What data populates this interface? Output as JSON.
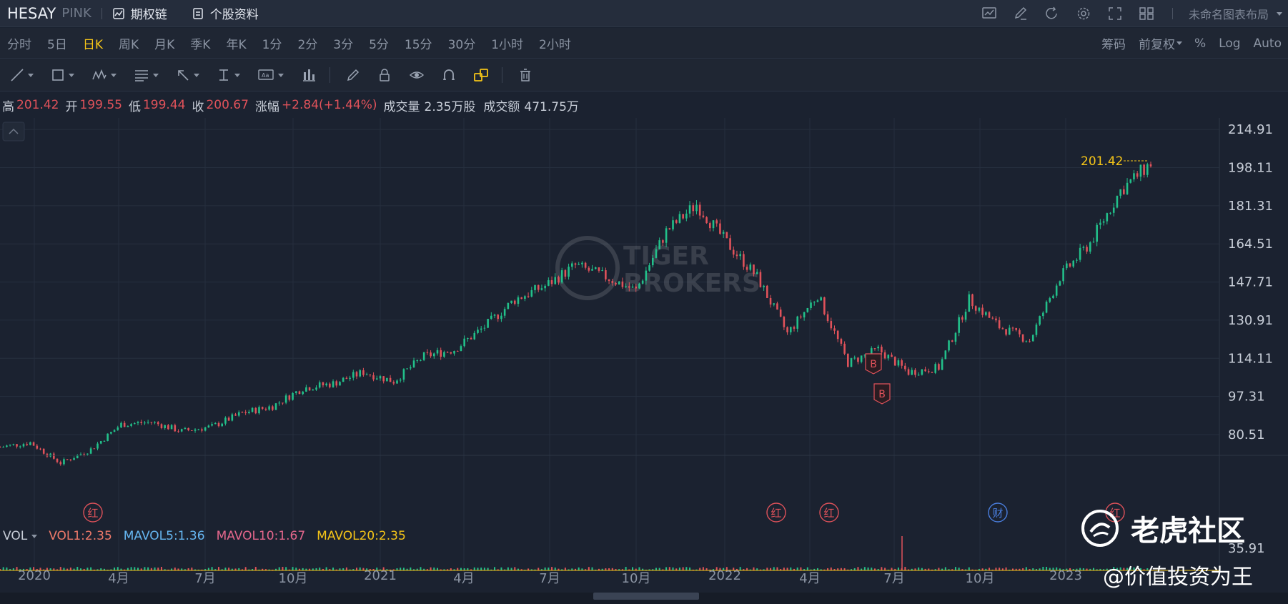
{
  "header": {
    "ticker": "HESAY",
    "exchange": "PINK",
    "option_chain": "期权链",
    "stock_profile": "个股资料",
    "layout_name": "未命名图表布局"
  },
  "periods": [
    "分时",
    "5日",
    "日K",
    "周K",
    "月K",
    "季K",
    "年K",
    "1分",
    "2分",
    "3分",
    "5分",
    "15分",
    "30分",
    "1小时",
    "2小时"
  ],
  "active_period": "日K",
  "period_right": {
    "chips": "筹码",
    "adjust": "前复权",
    "percent": "%",
    "log": "Log",
    "auto": "Auto"
  },
  "ohlc": {
    "high_label": "高",
    "high": "201.42",
    "open_label": "开",
    "open": "199.55",
    "low_label": "低",
    "low": "199.44",
    "close_label": "收",
    "close": "200.67",
    "change_label": "涨幅",
    "change": "+2.84(+1.44%)",
    "volume_label": "成交量",
    "volume": "2.35万股",
    "amount_label": "成交额",
    "amount": "471.75万"
  },
  "price_axis": [
    "214.91",
    "198.11",
    "181.31",
    "164.51",
    "147.71",
    "130.91",
    "114.11",
    "97.31",
    "80.51"
  ],
  "high_marker": "201.42",
  "vol_panel": {
    "label": "VOL",
    "vol1": "VOL1:2.35",
    "mavol5": "MAVOL5:1.36",
    "mavol10": "MAVOL10:1.67",
    "mavol20": "MAVOL20:2.35",
    "axis_value": "35.91"
  },
  "event_markers": [
    "红",
    "红",
    "红",
    "财",
    "红"
  ],
  "trade_markers": [
    "B",
    "B"
  ],
  "x_axis": [
    "2020",
    "4月",
    "7月",
    "10月",
    "2021",
    "4月",
    "7月",
    "10月",
    "2022",
    "4月",
    "7月",
    "10月",
    "2023"
  ],
  "watermarks": {
    "brand": "老虎社区",
    "handle": "@价值投资为王",
    "chart_logo_1": "TIGER",
    "chart_logo_2": "BROKERS"
  },
  "colors": {
    "up": "#22c08a",
    "down": "#e0525a",
    "accent": "#f5c518",
    "bg": "#1b2230"
  },
  "chart_data": {
    "type": "candlestick",
    "series": [
      {
        "name": "HESAY",
        "x": [
          "2020-01",
          "2020-02",
          "2020-03",
          "2020-04",
          "2020-05",
          "2020-06",
          "2020-07",
          "2020-08",
          "2020-09",
          "2020-10",
          "2020-11",
          "2020-12",
          "2021-01",
          "2021-02",
          "2021-03",
          "2021-04",
          "2021-05",
          "2021-06",
          "2021-07",
          "2021-08",
          "2021-09",
          "2021-10",
          "2021-11",
          "2021-12",
          "2022-01",
          "2022-02",
          "2022-03",
          "2022-04",
          "2022-05",
          "2022-06",
          "2022-07",
          "2022-08",
          "2022-09",
          "2022-10",
          "2022-11",
          "2022-12",
          "2023-01",
          "2023-02",
          "2023-03"
        ],
        "values": [
          75,
          77,
          68,
          74,
          85,
          86,
          82,
          84,
          90,
          93,
          101,
          103,
          108,
          104,
          115,
          118,
          128,
          140,
          146,
          155,
          150,
          144,
          170,
          182,
          165,
          150,
          125,
          142,
          112,
          118,
          108,
          110,
          140,
          128,
          122,
          150,
          165,
          188,
          200
        ]
      }
    ],
    "ylim": [
      72,
      220
    ],
    "yticks": [
      80.51,
      97.31,
      114.11,
      130.91,
      147.71,
      164.51,
      181.31,
      198.11,
      214.91
    ]
  }
}
